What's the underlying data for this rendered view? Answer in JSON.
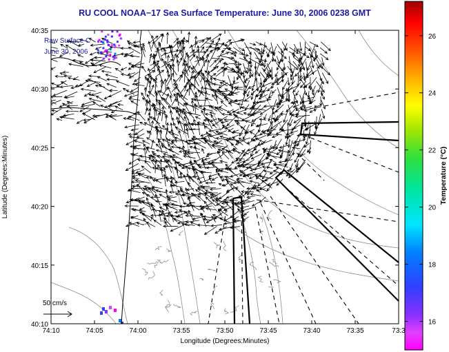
{
  "chart_data": {
    "type": "quiver",
    "title": "RU COOL  NOAA−17  Sea Surface Temperature:  June 30, 2006 0238 GMT",
    "xlabel": "Longitude (Degrees:Minutes)",
    "ylabel": "Latitude (Degrees:Minutes)",
    "x_ticks": [
      "74:10",
      "74:05",
      "74:00",
      "73:55",
      "73:50",
      "73:45",
      "73:40",
      "73:35",
      "73:3"
    ],
    "y_ticks": [
      "40:35",
      "40:30",
      "40:25",
      "40:20",
      "40:15",
      "40:10"
    ],
    "xlim_minutes_west": [
      10,
      30
    ],
    "ylim_minutes_north": [
      10,
      35
    ],
    "inset_text": [
      "Raw Surface C",
      "June 30, 2006"
    ],
    "scale_label": "50 cm/s",
    "colorbar": {
      "label": "Temperature (°C)",
      "ticks": [
        "26",
        "24",
        "22",
        "20",
        "18",
        "16"
      ],
      "range": [
        15,
        27.2
      ]
    },
    "markers": [
      {
        "lon_minutes_west": 58.8,
        "lat_minutes_north": 14.3
      },
      {
        "lon_minutes_west": 52.4,
        "lat_minutes_north": 13.45
      }
    ],
    "grid": false
  }
}
